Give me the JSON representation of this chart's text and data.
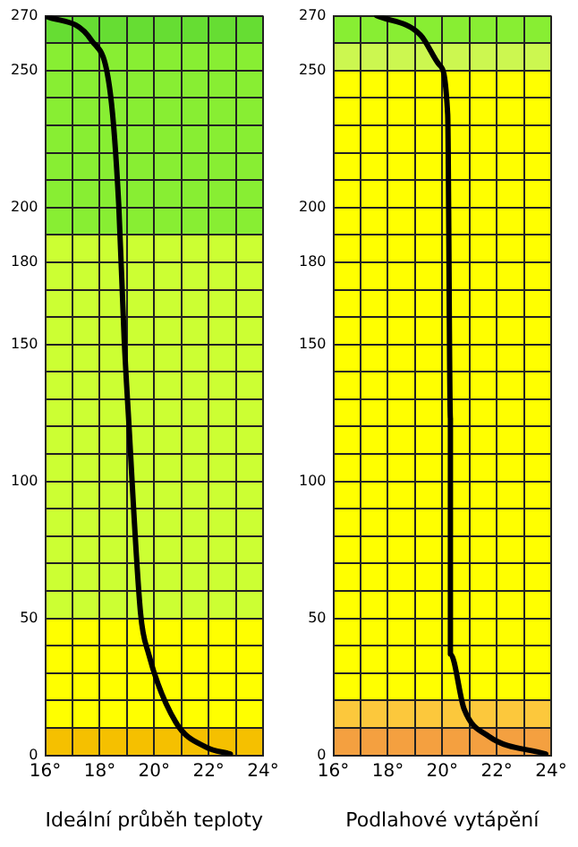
{
  "chart_data": [
    {
      "type": "line",
      "xlabel": "Ideální průběh teploty",
      "xlim": [
        16,
        24
      ],
      "ylim": [
        0,
        270
      ],
      "xticks": [
        {
          "value": 16,
          "label": "16°"
        },
        {
          "value": 17,
          "label": null
        },
        {
          "value": 18,
          "label": "18°"
        },
        {
          "value": 19,
          "label": null
        },
        {
          "value": 20,
          "label": "20°"
        },
        {
          "value": 21,
          "label": null
        },
        {
          "value": 22,
          "label": "22°"
        },
        {
          "value": 23,
          "label": null
        },
        {
          "value": 24,
          "label": "24°"
        }
      ],
      "yticks": [
        0,
        {
          "value": 10,
          "label": null
        },
        {
          "value": 20,
          "label": null
        },
        {
          "value": 30,
          "label": null
        },
        {
          "value": 40,
          "label": null
        },
        50,
        {
          "value": 60,
          "label": null
        },
        {
          "value": 70,
          "label": null
        },
        {
          "value": 80,
          "label": null
        },
        {
          "value": 90,
          "label": null
        },
        100,
        {
          "value": 110,
          "label": null
        },
        {
          "value": 120,
          "label": null
        },
        {
          "value": 130,
          "label": null
        },
        {
          "value": 140,
          "label": null
        },
        150,
        {
          "value": 160,
          "label": null
        },
        {
          "value": 170,
          "label": null
        },
        180,
        {
          "value": 190,
          "label": null
        },
        200,
        {
          "value": 210,
          "label": null
        },
        {
          "value": 220,
          "label": null
        },
        {
          "value": 230,
          "label": null
        },
        {
          "value": 240,
          "label": null
        },
        250,
        {
          "value": 260,
          "label": null
        },
        270
      ],
      "grid": true,
      "legend": false,
      "marker": "none",
      "line_style": "solid",
      "bands": [
        {
          "axis": "y",
          "from": 0,
          "to": 10,
          "color": "#f5c000"
        },
        {
          "axis": "y",
          "from": 10,
          "to": 50,
          "color": "#ffff00"
        },
        {
          "axis": "y",
          "from": 50,
          "to": 190,
          "color": "#ccff33"
        },
        {
          "axis": "y",
          "from": 190,
          "to": 260,
          "color": "#88ee33"
        },
        {
          "axis": "y",
          "from": 260,
          "to": 270,
          "color": "#66dd33"
        }
      ],
      "series": [
        {
          "color": "#000000",
          "x": [
            16,
            17.7,
            18.4,
            18.7,
            18.9,
            19.05,
            19.5,
            19.8,
            20.8,
            21.9,
            22.8
          ],
          "values": [
            270,
            261,
            241,
            201,
            152,
            125,
            52,
            37,
            12,
            3,
            0.5
          ]
        }
      ]
    },
    {
      "type": "line",
      "xlabel": "Podlahové vytápění",
      "xlim": [
        16,
        24
      ],
      "ylim": [
        0,
        270
      ],
      "xticks": [
        {
          "value": 16,
          "label": "16°"
        },
        {
          "value": 17,
          "label": null
        },
        {
          "value": 18,
          "label": "18°"
        },
        {
          "value": 19,
          "label": null
        },
        {
          "value": 20,
          "label": "20°"
        },
        {
          "value": 21,
          "label": null
        },
        {
          "value": 22,
          "label": "22°"
        },
        {
          "value": 23,
          "label": null
        },
        {
          "value": 24,
          "label": "24°"
        }
      ],
      "yticks": [
        0,
        {
          "value": 10,
          "label": null
        },
        {
          "value": 20,
          "label": null
        },
        {
          "value": 30,
          "label": null
        },
        {
          "value": 40,
          "label": null
        },
        50,
        {
          "value": 60,
          "label": null
        },
        {
          "value": 70,
          "label": null
        },
        {
          "value": 80,
          "label": null
        },
        {
          "value": 90,
          "label": null
        },
        100,
        {
          "value": 110,
          "label": null
        },
        {
          "value": 120,
          "label": null
        },
        {
          "value": 130,
          "label": null
        },
        {
          "value": 140,
          "label": null
        },
        150,
        {
          "value": 160,
          "label": null
        },
        {
          "value": 170,
          "label": null
        },
        180,
        {
          "value": 190,
          "label": null
        },
        200,
        {
          "value": 210,
          "label": null
        },
        {
          "value": 220,
          "label": null
        },
        {
          "value": 230,
          "label": null
        },
        {
          "value": 240,
          "label": null
        },
        250,
        {
          "value": 260,
          "label": null
        },
        270
      ],
      "grid": true,
      "legend": false,
      "marker": "none",
      "line_style": "solid",
      "bands": [
        {
          "axis": "y",
          "from": 0,
          "to": 10,
          "color": "#f4a040"
        },
        {
          "axis": "y",
          "from": 10,
          "to": 20,
          "color": "#fcc83c"
        },
        {
          "axis": "y",
          "from": 20,
          "to": 250,
          "color": "#ffff00"
        },
        {
          "axis": "y",
          "from": 250,
          "to": 260,
          "color": "#ccf750"
        },
        {
          "axis": "y",
          "from": 260,
          "to": 270,
          "color": "#88ee33"
        }
      ],
      "series": [
        {
          "color": "#000000",
          "x": [
            17.6,
            19.2,
            19.9,
            20.2,
            20.3,
            20.3,
            20.8,
            21.7,
            23.8
          ],
          "values": [
            270,
            263,
            252,
            234,
            123,
            37,
            17,
            7,
            0.5
          ]
        }
      ]
    }
  ]
}
